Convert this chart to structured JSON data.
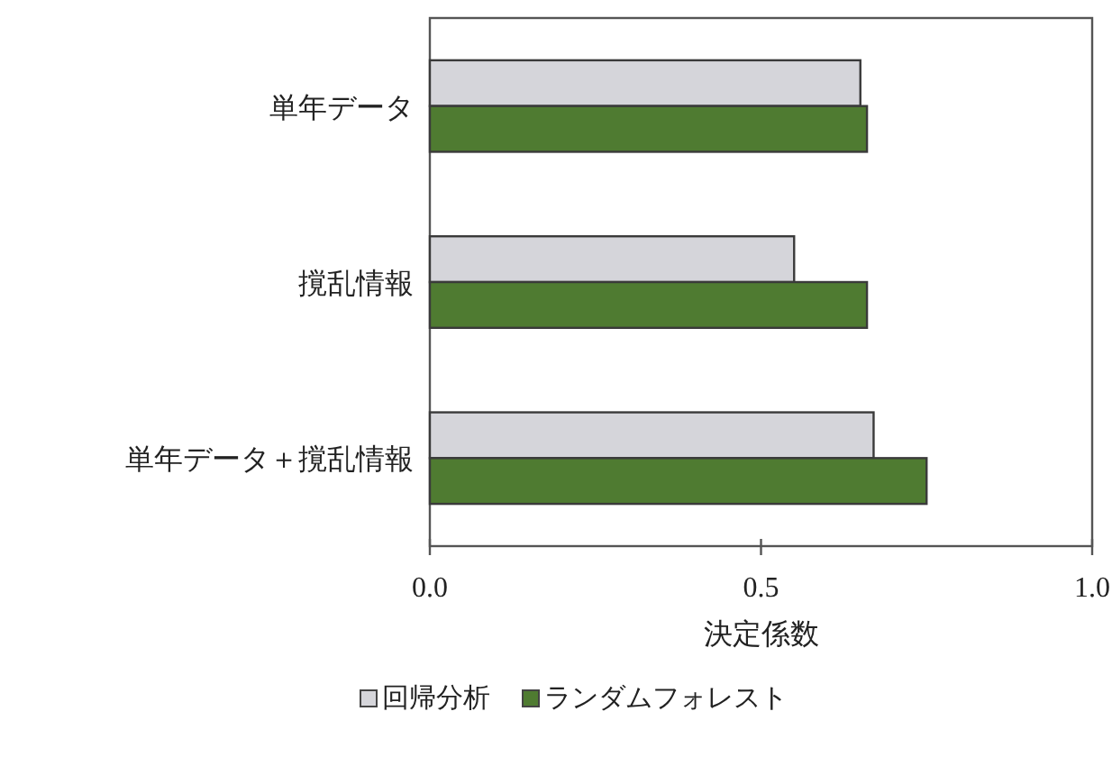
{
  "chart_data": {
    "type": "bar",
    "orientation": "horizontal",
    "categories": [
      "単年データ",
      "撹乱情報",
      "単年データ＋撹乱情報"
    ],
    "series": [
      {
        "name": "回帰分析",
        "color": "#d5d5da",
        "values": [
          0.65,
          0.55,
          0.67
        ]
      },
      {
        "name": "ランダムフォレスト",
        "color": "#4f7b31",
        "values": [
          0.66,
          0.66,
          0.75
        ]
      }
    ],
    "xlim": [
      0,
      1
    ],
    "xticks": [
      {
        "value": 0,
        "label": "0.0"
      },
      {
        "value": 0.5,
        "label": "0.5"
      },
      {
        "value": 1,
        "label": "1.0"
      }
    ],
    "xlabel": "決定係数",
    "legend": "bottom"
  }
}
